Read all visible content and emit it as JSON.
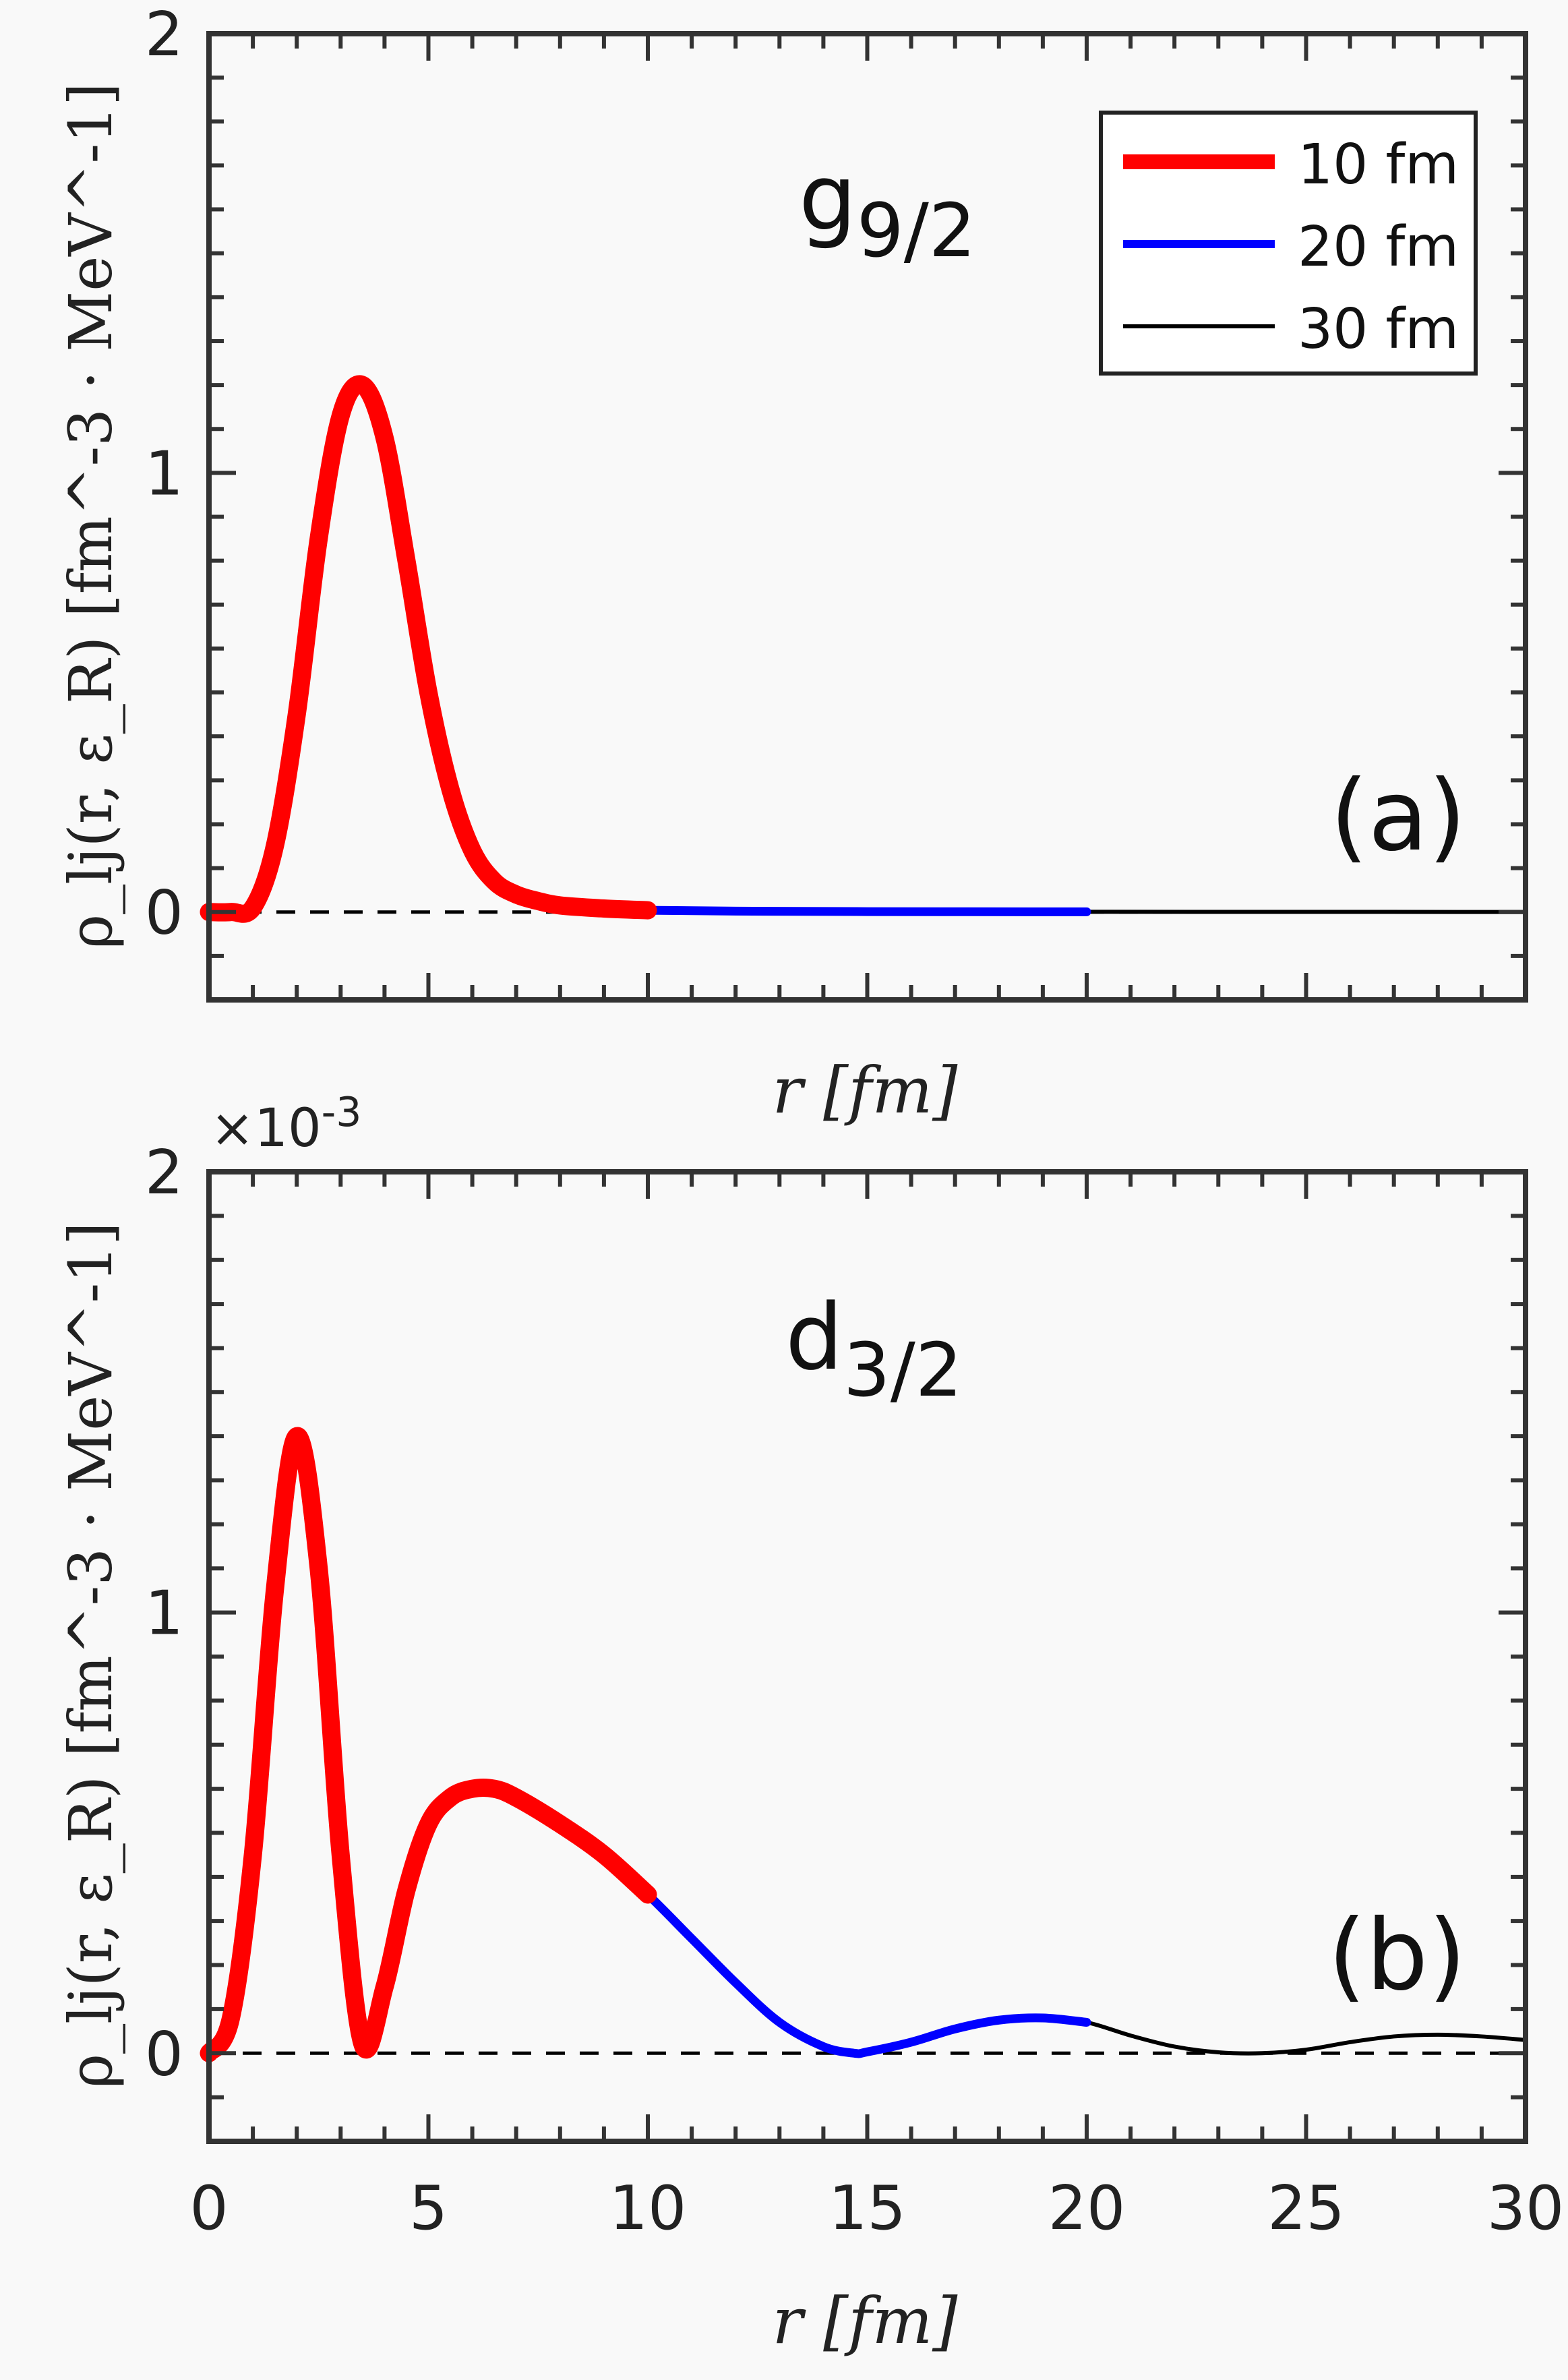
{
  "chart_data": [
    {
      "type": "line",
      "panel_label": "(a)",
      "annotation": "g",
      "annotation_sub": "9/2",
      "xlabel": "r [fm]",
      "ylabel": "ρ_lj(r, ε_R) [fm^-3 · MeV^-1]",
      "xlim": [
        0,
        30
      ],
      "ylim": [
        -0.2,
        2
      ],
      "xticks": [],
      "yticks": [
        "0",
        "1",
        "2"
      ],
      "multiplier": "",
      "legend": {
        "position": "top-right",
        "entries": [
          "10 fm",
          "20 fm",
          "30 fm"
        ]
      },
      "reference_line": {
        "y": 0,
        "style": "dashed"
      },
      "x": [
        0,
        0.5,
        1,
        1.5,
        2,
        2.5,
        3,
        3.5,
        4,
        4.5,
        5,
        5.5,
        6,
        6.5,
        7,
        7.5,
        8,
        9,
        10,
        12,
        15,
        20,
        25,
        30
      ],
      "y": [
        0,
        0,
        0.01,
        0.15,
        0.45,
        0.85,
        1.13,
        1.2,
        1.08,
        0.8,
        0.5,
        0.28,
        0.14,
        0.07,
        0.04,
        0.025,
        0.015,
        0.008,
        0.004,
        0.002,
        0.001,
        0.0005,
        0.0003,
        0.0002
      ],
      "series": [
        {
          "name": "10 fm",
          "x_max": 10,
          "color": "#ff0000"
        },
        {
          "name": "20 fm",
          "x_max": 20,
          "color": "#0000ff"
        },
        {
          "name": "30 fm",
          "x_max": 30,
          "color": "#000000"
        }
      ]
    },
    {
      "type": "line",
      "panel_label": "(b)",
      "annotation": "d",
      "annotation_sub": "3/2",
      "xlabel": "r [fm]",
      "ylabel": "ρ_lj(r, ε_R) [fm^-3 · MeV^-1]",
      "xlim": [
        0,
        30
      ],
      "ylim": [
        -0.2,
        2
      ],
      "xticks": [
        "0",
        "5",
        "10",
        "15",
        "20",
        "25",
        "30"
      ],
      "yticks": [
        "0",
        "1",
        "2"
      ],
      "multiplier": "×10",
      "multiplier_exp": "-3",
      "reference_line": {
        "y": 0,
        "style": "dashed"
      },
      "x": [
        0,
        0.5,
        1,
        1.5,
        2,
        2.5,
        3,
        3.5,
        4,
        4.5,
        5,
        5.5,
        6,
        6.5,
        7,
        8,
        9,
        10,
        11,
        12,
        13,
        14,
        14.7,
        15,
        16,
        17,
        18,
        19,
        20,
        21,
        22,
        23,
        24,
        25,
        26,
        27,
        28,
        29,
        30
      ],
      "y": [
        0,
        0.08,
        0.45,
        1.05,
        1.4,
        1.1,
        0.45,
        0.02,
        0.15,
        0.37,
        0.52,
        0.58,
        0.6,
        0.6,
        0.58,
        0.52,
        0.45,
        0.36,
        0.26,
        0.16,
        0.07,
        0.015,
        0,
        0.003,
        0.025,
        0.055,
        0.075,
        0.08,
        0.07,
        0.04,
        0.015,
        0.002,
        0,
        0.008,
        0.025,
        0.038,
        0.042,
        0.038,
        0.03
      ],
      "series": [
        {
          "name": "10 fm",
          "x_max": 10,
          "color": "#ff0000"
        },
        {
          "name": "20 fm",
          "x_max": 20,
          "color": "#0000ff"
        },
        {
          "name": "30 fm",
          "x_max": 30,
          "color": "#000000"
        }
      ]
    }
  ]
}
